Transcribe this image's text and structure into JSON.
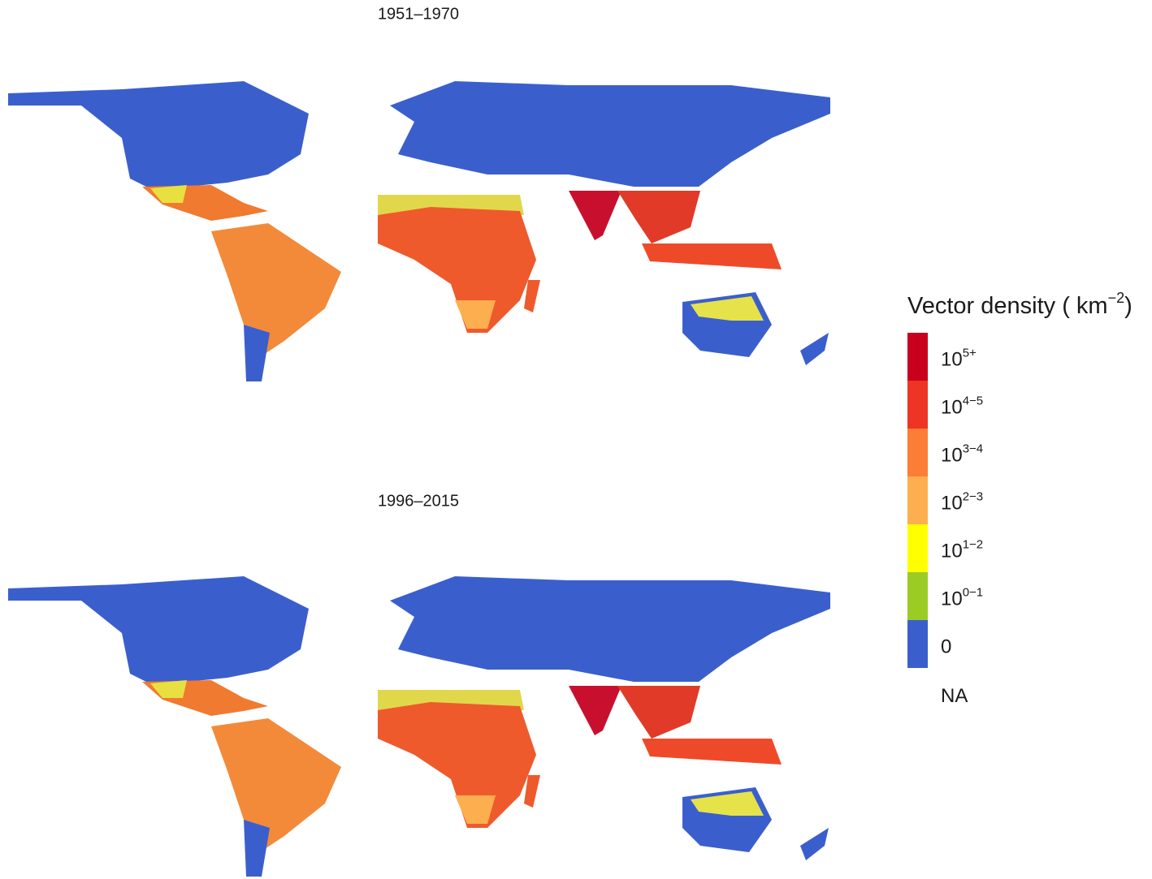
{
  "maps": [
    {
      "title": "1951–1970"
    },
    {
      "title": "1996–2015"
    }
  ],
  "legend": {
    "title": {
      "text": "Vector density ( km",
      "sup": "−2",
      "end": ")"
    },
    "items": [
      {
        "color": "#c8001e",
        "base": "10",
        "sup": "5+"
      },
      {
        "color": "#ee3424",
        "base": "10",
        "sup": "4−5"
      },
      {
        "color": "#fb7d36",
        "base": "10",
        "sup": "3−4"
      },
      {
        "color": "#fdae4f",
        "base": "10",
        "sup": "2−3"
      },
      {
        "color": "#ffff00",
        "base": "10",
        "sup": "1−2"
      },
      {
        "color": "#9bcc26",
        "base": "10",
        "sup": "0−1"
      },
      {
        "color": "#3a5fcd",
        "base": "0"
      }
    ],
    "na": "NA"
  }
}
